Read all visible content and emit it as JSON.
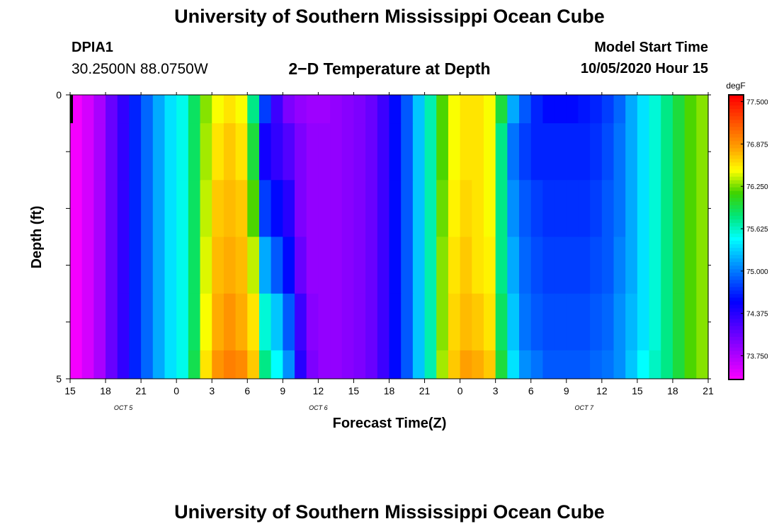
{
  "header": {
    "title": "University of Southern Mississippi Ocean Cube",
    "station_id": "DPIA1",
    "station_coords": "30.2500N 88.0750W",
    "plot_title": "2−D Temperature at Depth",
    "model_start_label": "Model Start Time",
    "model_start_time": "10/05/2020 Hour 15"
  },
  "footer": {
    "title": "University of Southern Mississippi Ocean Cube"
  },
  "chart_data": {
    "type": "heatmap",
    "title": "2−D Temperature at Depth",
    "xlabel": "Forecast Time(Z)",
    "ylabel": "Depth (ft)",
    "x_ticks": [
      "15",
      "18",
      "21",
      "0",
      "3",
      "6",
      "9",
      "12",
      "15",
      "18",
      "21",
      "0",
      "3",
      "6",
      "9",
      "12",
      "15",
      "18",
      "21"
    ],
    "x_date_labels": [
      {
        "label": "OCT 5",
        "at_tick": 1.5
      },
      {
        "label": "OCT 6",
        "at_tick": 7
      },
      {
        "label": "OCT 7",
        "at_tick": 14.5
      }
    ],
    "y_ticks": [
      "0",
      "5"
    ],
    "ylim": [
      0,
      5
    ],
    "hours": 54,
    "colorbar": {
      "unit": "degF",
      "min": 73.4,
      "max": 77.6,
      "labels": [
        "77.500",
        "76.875",
        "76.250",
        "75.625",
        "75.000",
        "74.375",
        "73.750"
      ],
      "label_values": [
        77.5,
        76.875,
        76.25,
        75.625,
        75.0,
        74.375,
        73.75
      ]
    },
    "depth_layers": [
      "0-0.5",
      "0.5-1.5",
      "1.5-2.5",
      "2.5-3.5",
      "3.5-4.5",
      "4.5-5"
    ],
    "temperature_degF": [
      [
        73.45,
        73.6,
        73.8,
        74.1,
        74.35,
        74.7,
        74.95,
        75.2,
        75.4,
        75.55,
        75.9,
        76.3,
        76.5,
        76.6,
        76.5,
        75.8,
        74.8,
        74.3,
        74.0,
        73.9,
        73.85,
        73.85,
        73.9,
        73.95,
        74.0,
        74.1,
        74.3,
        74.6,
        74.9,
        75.3,
        75.7,
        76.2,
        76.5,
        76.6,
        76.6,
        76.5,
        76.0,
        75.2,
        74.9,
        74.7,
        74.6,
        74.6,
        74.6,
        74.65,
        74.7,
        74.8,
        74.95,
        75.2,
        75.4,
        75.6,
        75.8,
        76.0,
        76.2,
        76.3
      ],
      [
        73.45,
        73.6,
        73.8,
        74.1,
        74.35,
        74.7,
        74.95,
        75.2,
        75.4,
        75.55,
        75.9,
        76.35,
        76.6,
        76.7,
        76.6,
        76.0,
        74.5,
        74.35,
        74.2,
        74.0,
        73.9,
        73.9,
        73.9,
        73.95,
        74.0,
        74.1,
        74.3,
        74.6,
        74.9,
        75.3,
        75.7,
        76.2,
        76.5,
        76.6,
        76.6,
        76.5,
        75.8,
        75.0,
        74.8,
        74.7,
        74.7,
        74.7,
        74.7,
        74.7,
        74.75,
        74.85,
        75.0,
        75.2,
        75.4,
        75.6,
        75.8,
        76.0,
        76.2,
        76.3
      ],
      [
        73.45,
        73.6,
        73.8,
        74.1,
        74.35,
        74.7,
        74.95,
        75.2,
        75.4,
        75.55,
        75.9,
        76.4,
        76.7,
        76.75,
        76.7,
        76.2,
        74.8,
        74.6,
        74.4,
        74.0,
        73.9,
        73.9,
        73.9,
        73.95,
        74.0,
        74.1,
        74.3,
        74.6,
        74.9,
        75.3,
        75.7,
        76.25,
        76.55,
        76.65,
        76.6,
        76.5,
        75.8,
        75.1,
        74.9,
        74.8,
        74.75,
        74.75,
        74.75,
        74.75,
        74.8,
        74.9,
        75.0,
        75.2,
        75.4,
        75.6,
        75.8,
        76.0,
        76.2,
        76.3
      ],
      [
        73.45,
        73.6,
        73.8,
        74.1,
        74.35,
        74.7,
        74.95,
        75.2,
        75.4,
        75.55,
        75.9,
        76.45,
        76.75,
        76.8,
        76.75,
        76.4,
        75.2,
        74.9,
        74.6,
        74.1,
        73.9,
        73.9,
        73.9,
        73.95,
        74.0,
        74.1,
        74.3,
        74.6,
        74.9,
        75.3,
        75.7,
        76.3,
        76.6,
        76.7,
        76.6,
        76.55,
        75.8,
        75.2,
        74.95,
        74.85,
        74.8,
        74.8,
        74.8,
        74.8,
        74.85,
        74.9,
        75.05,
        75.2,
        75.4,
        75.6,
        75.8,
        76.0,
        76.2,
        76.3
      ],
      [
        73.45,
        73.6,
        73.8,
        74.1,
        74.35,
        74.7,
        74.95,
        75.2,
        75.4,
        75.55,
        75.9,
        76.5,
        76.8,
        76.9,
        76.8,
        76.6,
        75.6,
        75.3,
        74.9,
        74.3,
        73.95,
        73.9,
        73.9,
        73.95,
        74.0,
        74.1,
        74.3,
        74.6,
        74.9,
        75.3,
        75.7,
        76.3,
        76.65,
        76.75,
        76.7,
        76.6,
        75.9,
        75.3,
        75.0,
        74.9,
        74.85,
        74.85,
        74.85,
        74.85,
        74.9,
        74.95,
        75.1,
        75.25,
        75.4,
        75.6,
        75.8,
        76.0,
        76.2,
        76.3
      ],
      [
        73.45,
        73.6,
        73.8,
        74.1,
        74.35,
        74.7,
        74.95,
        75.2,
        75.4,
        75.55,
        75.95,
        76.6,
        76.9,
        77.0,
        76.95,
        76.7,
        75.8,
        75.5,
        75.1,
        74.4,
        74.0,
        73.9,
        73.9,
        73.95,
        74.0,
        74.1,
        74.3,
        74.6,
        74.9,
        75.3,
        75.7,
        76.35,
        76.7,
        76.85,
        76.8,
        76.7,
        76.0,
        75.4,
        75.1,
        75.0,
        74.9,
        74.9,
        74.9,
        74.9,
        74.95,
        75.0,
        75.1,
        75.3,
        75.5,
        75.65,
        75.8,
        76.0,
        76.2,
        76.3
      ]
    ]
  }
}
